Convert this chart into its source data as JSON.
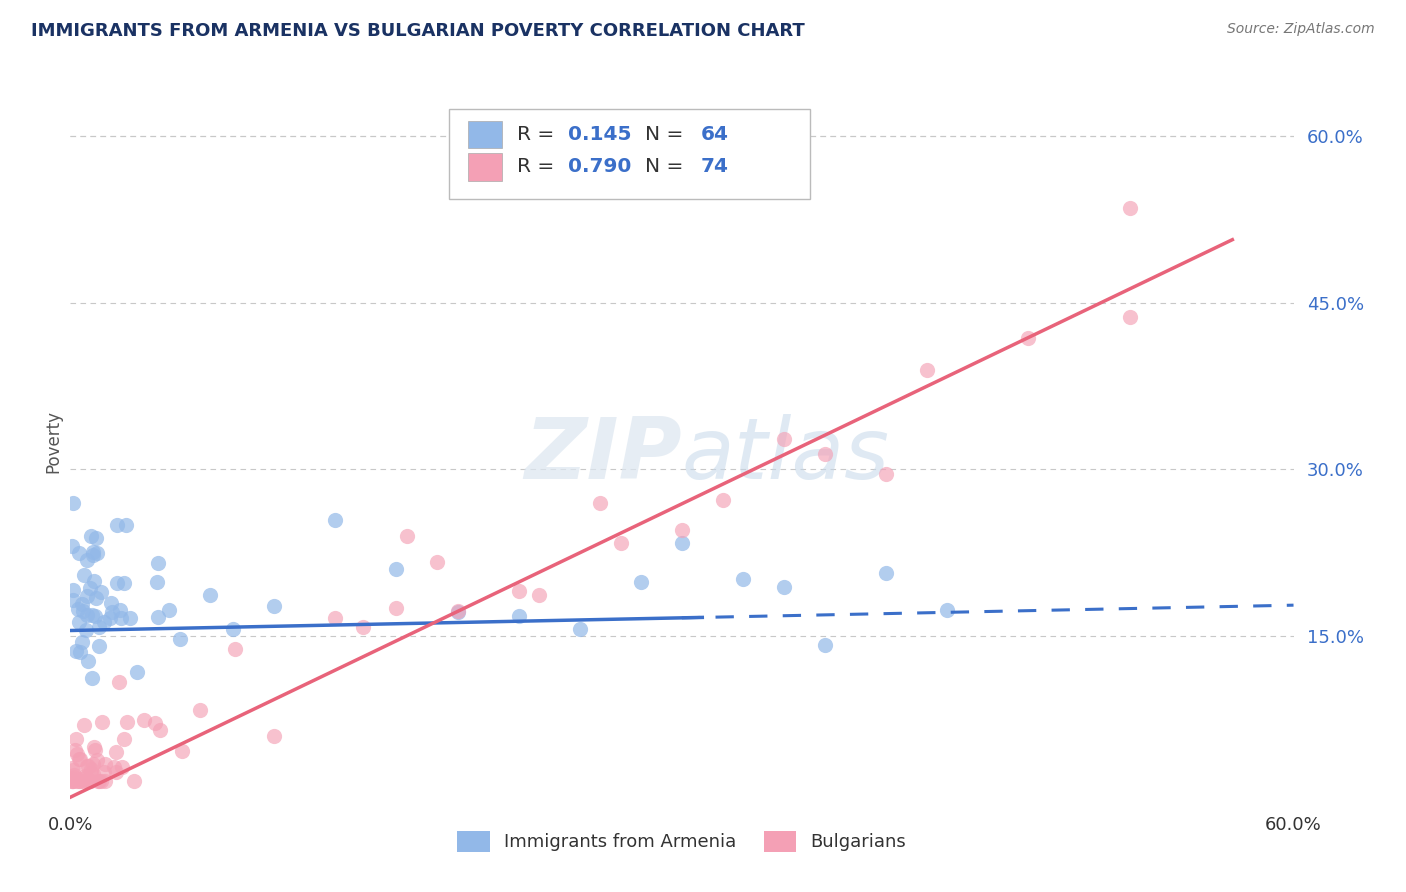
{
  "title": "IMMIGRANTS FROM ARMENIA VS BULGARIAN POVERTY CORRELATION CHART",
  "source_text": "Source: ZipAtlas.com",
  "ylabel": "Poverty",
  "xlim": [
    0.0,
    0.6
  ],
  "ylim": [
    0.0,
    0.65
  ],
  "yticks": [
    0.15,
    0.3,
    0.45,
    0.6
  ],
  "ytick_labels": [
    "15.0%",
    "30.0%",
    "45.0%",
    "60.0%"
  ],
  "watermark": "ZIPatlas",
  "color_armenia": "#92b8e8",
  "color_bulgaria": "#f4a0b5",
  "line_color_armenia": "#3b6fc9",
  "line_color_bulgaria": "#e8637a",
  "background_color": "#ffffff",
  "grid_color": "#c8c8c8",
  "title_color": "#1a3263",
  "tick_color": "#3b6fc9",
  "ylabel_color": "#555555",
  "source_color": "#777777",
  "legend_text_color": "#333333",
  "legend_num_color": "#3b6fc9"
}
